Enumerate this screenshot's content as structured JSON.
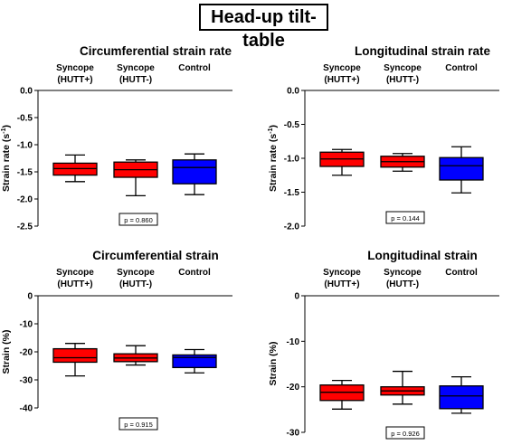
{
  "header": {
    "title": "Head-up tilt-table"
  },
  "chart_data": [
    {
      "type": "box",
      "title": "Circumferential strain rate",
      "ylabel": "Strain rate (s",
      "ylabel_sup": "-1",
      "ylabel_close": ")",
      "ylim": [
        -2.5,
        0
      ],
      "yticks": [
        0,
        -0.5,
        -1.0,
        -1.5,
        -2.0,
        -2.5
      ],
      "ytick_labels": [
        "0.0",
        "-0.5",
        "-1.0",
        "-1.5",
        "-2.0",
        "-2.5"
      ],
      "categories": [
        [
          "Syncope",
          "(HUTT+)"
        ],
        [
          "Syncope",
          "(HUTT-)"
        ],
        [
          "Control",
          ""
        ]
      ],
      "boxes": [
        {
          "whisker_high": -1.19,
          "q3": -1.34,
          "median": -1.44,
          "q1": -1.56,
          "whisker_low": -1.68,
          "color": "#ff0000"
        },
        {
          "whisker_high": -1.28,
          "q3": -1.32,
          "median": -1.46,
          "q1": -1.6,
          "whisker_low": -1.94,
          "color": "#ff0000"
        },
        {
          "whisker_high": -1.17,
          "q3": -1.28,
          "median": -1.42,
          "q1": -1.72,
          "whisker_low": -1.92,
          "color": "#0000ff"
        }
      ],
      "p_value": "p = 0.860"
    },
    {
      "type": "box",
      "title": "Longitudinal strain rate",
      "ylabel": "Strain rate (s",
      "ylabel_sup": "-1",
      "ylabel_close": ")",
      "ylim": [
        -2.0,
        0
      ],
      "yticks": [
        0,
        -0.5,
        -1.0,
        -1.5,
        -2.0
      ],
      "ytick_labels": [
        "0.0",
        "-0.5",
        "-1.0",
        "-1.5",
        "-2.0"
      ],
      "categories": [
        [
          "Syncope",
          "(HUTT+)"
        ],
        [
          "Syncope",
          "(HUTT-)"
        ],
        [
          "Control",
          ""
        ]
      ],
      "boxes": [
        {
          "whisker_high": -0.87,
          "q3": -0.91,
          "median": -1.01,
          "q1": -1.12,
          "whisker_low": -1.25,
          "color": "#ff0000"
        },
        {
          "whisker_high": -0.93,
          "q3": -0.97,
          "median": -1.05,
          "q1": -1.13,
          "whisker_low": -1.19,
          "color": "#ff0000"
        },
        {
          "whisker_high": -0.83,
          "q3": -0.99,
          "median": -1.11,
          "q1": -1.32,
          "whisker_low": -1.51,
          "color": "#0000ff"
        }
      ],
      "p_value": "p = 0.144"
    },
    {
      "type": "box",
      "title": "Circumferential strain",
      "ylabel": "Strain (%)",
      "ylim": [
        -40,
        0
      ],
      "yticks": [
        0,
        -10,
        -20,
        -30,
        -40
      ],
      "ytick_labels": [
        "0",
        "-10",
        "-20",
        "-30",
        "-40"
      ],
      "categories": [
        [
          "Syncope",
          "(HUTT+)"
        ],
        [
          "Syncope",
          "(HUTT-)"
        ],
        [
          "Control",
          ""
        ]
      ],
      "boxes": [
        {
          "whisker_high": -17.0,
          "q3": -18.9,
          "median": -22.1,
          "q1": -23.7,
          "whisker_low": -28.6,
          "color": "#ff0000"
        },
        {
          "whisker_high": -17.8,
          "q3": -20.7,
          "median": -22.2,
          "q1": -23.5,
          "whisker_low": -24.7,
          "color": "#ff0000"
        },
        {
          "whisker_high": -19.2,
          "q3": -21.1,
          "median": -22.0,
          "q1": -25.6,
          "whisker_low": -27.5,
          "color": "#0000ff"
        }
      ],
      "p_value": "p = 0.915"
    },
    {
      "type": "box",
      "title": "Longitudinal strain",
      "ylabel": "Strain (%)",
      "ylim": [
        -30,
        0
      ],
      "yticks": [
        0,
        -10,
        -20,
        -30
      ],
      "ytick_labels": [
        "0",
        "-10",
        "-20",
        "-30"
      ],
      "categories": [
        [
          "Syncope",
          "(HUTT+)"
        ],
        [
          "Syncope",
          "(HUTT-)"
        ],
        [
          "Control",
          ""
        ]
      ],
      "boxes": [
        {
          "whisker_high": -18.6,
          "q3": -19.6,
          "median": -21.2,
          "q1": -23.0,
          "whisker_low": -24.9,
          "color": "#ff0000"
        },
        {
          "whisker_high": -16.6,
          "q3": -20.0,
          "median": -20.9,
          "q1": -21.8,
          "whisker_low": -23.8,
          "color": "#ff0000"
        },
        {
          "whisker_high": -17.8,
          "q3": -19.8,
          "median": -22.0,
          "q1": -24.8,
          "whisker_low": -25.8,
          "color": "#0000ff"
        }
      ],
      "p_value": "p = 0.926"
    }
  ]
}
